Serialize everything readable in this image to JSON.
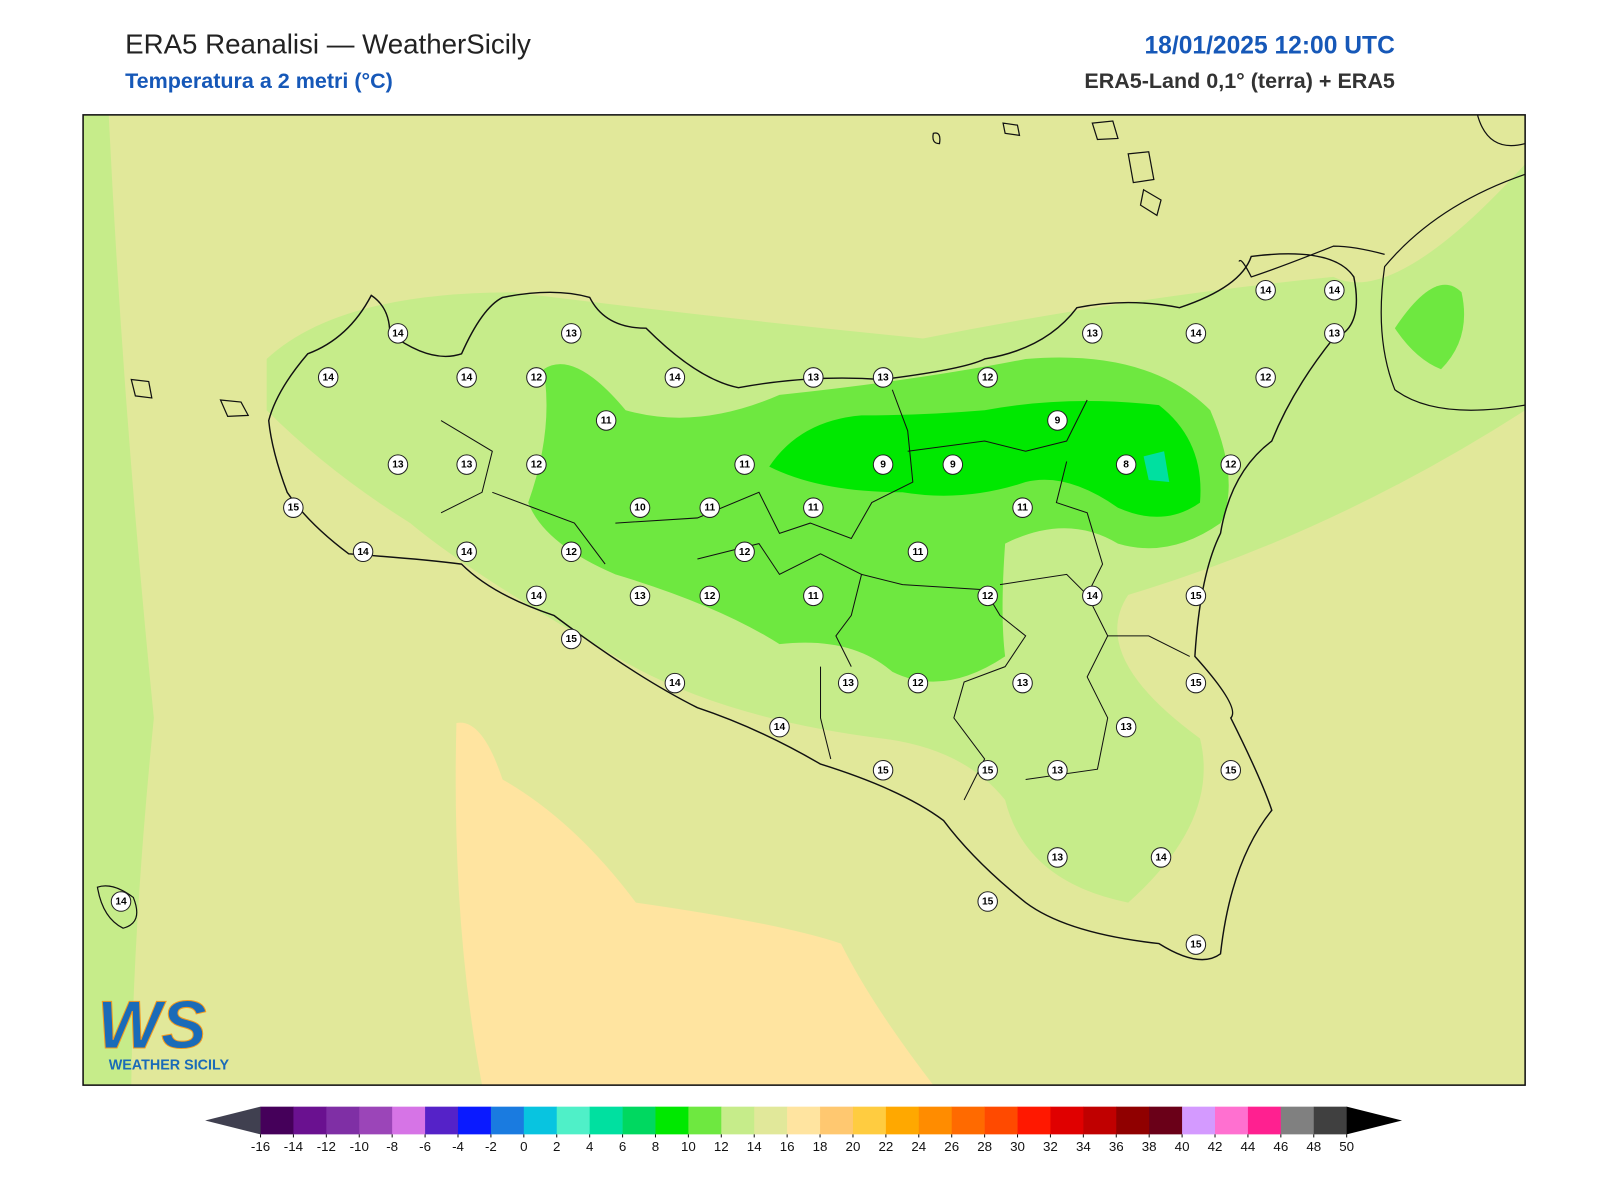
{
  "header": {
    "title": "ERA5 Reanalisi — WeatherSicily",
    "subtitle": "Temperatura a 2 metri (°C)",
    "datetime": "18/01/2025 12:00 UTC",
    "source": "ERA5-Land 0,1° (terra) + ERA5"
  },
  "stations": [
    14,
    13,
    14,
    14,
    12,
    14,
    13,
    13,
    12,
    13,
    14,
    14,
    14,
    13,
    12,
    11,
    9,
    13,
    13,
    12,
    11,
    9,
    9,
    8,
    12,
    15,
    10,
    11,
    11,
    11,
    14,
    14,
    12,
    12,
    11,
    14,
    13,
    12,
    11,
    12,
    14,
    15,
    15,
    14,
    13,
    12,
    13,
    15,
    14,
    13,
    15,
    15,
    13,
    15,
    13,
    14,
    14,
    15,
    15
  ],
  "colorbar": {
    "ticks": [
      -16,
      -14,
      -12,
      -10,
      -8,
      -6,
      -4,
      -2,
      0,
      2,
      4,
      6,
      8,
      10,
      12,
      14,
      16,
      18,
      20,
      22,
      24,
      26,
      28,
      30,
      32,
      34,
      36,
      38,
      40,
      42,
      44,
      46,
      48,
      50
    ],
    "colors": [
      "#45005a",
      "#6a1190",
      "#7f2fa5",
      "#9b45b8",
      "#d674e6",
      "#5522c8",
      "#0a1aff",
      "#1a7be0",
      "#08c4e0",
      "#4ff0c8",
      "#00e0a0",
      "#00d860",
      "#00e800",
      "#6ee840",
      "#c6ec8a",
      "#e1e89a",
      "#ffe4a0",
      "#ffc870",
      "#ffcc40",
      "#ffa800",
      "#ff8c00",
      "#ff6a00",
      "#ff4a00",
      "#ff1800",
      "#e00000",
      "#c00000",
      "#900000",
      "#6a0018",
      "#d49aff",
      "#ff70d0",
      "#ff2090",
      "#808080",
      "#404040"
    ],
    "under_color": "#404050",
    "over_color": "#000000"
  },
  "logo": {
    "mark": "WS",
    "name": "WEATHER SICILY"
  }
}
